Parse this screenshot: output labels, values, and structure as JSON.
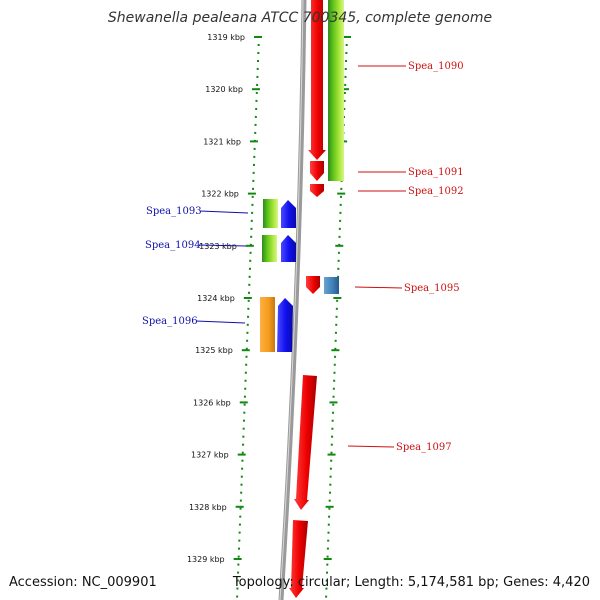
{
  "title": "Shewanella pealeana ATCC 700345, complete genome",
  "footer": {
    "accession": "Accession: NC_009901",
    "summary": "Topology: circular; Length: 5,174,581 bp; Genes: 4,420"
  },
  "colors": {
    "forward_gene": "#ee1111",
    "reverse_gene": "#1a1aee",
    "left_label": "#1111aa",
    "right_label": "#cc1111",
    "tick": "#118811",
    "backbone": "#888888",
    "orange_feature": "#f39a1e",
    "steelblue_feature": "#3d7fb6"
  },
  "ticks": [
    {
      "kbp": 1319,
      "label": "1319 kbp"
    },
    {
      "kbp": 1320,
      "label": "1320 kbp"
    },
    {
      "kbp": 1321,
      "label": "1321 kbp"
    },
    {
      "kbp": 1322,
      "label": "1322 kbp"
    },
    {
      "kbp": 1323,
      "label": "1323 kbp"
    },
    {
      "kbp": 1324,
      "label": "1324 kbp"
    },
    {
      "kbp": 1325,
      "label": "1325 kbp"
    },
    {
      "kbp": 1326,
      "label": "1326 kbp"
    },
    {
      "kbp": 1327,
      "label": "1327 kbp"
    },
    {
      "kbp": 1328,
      "label": "1328 kbp"
    },
    {
      "kbp": 1329,
      "label": "1329 kbp"
    }
  ],
  "right_labels": [
    "Spea_1090",
    "Spea_1091",
    "Spea_1092",
    "Spea_1095",
    "Spea_1097"
  ],
  "left_labels": [
    "Spea_1093",
    "Spea_1094",
    "Spea_1096"
  ]
}
